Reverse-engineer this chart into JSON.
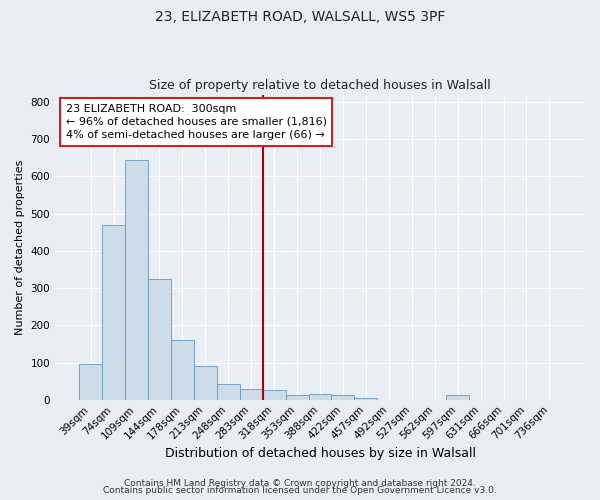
{
  "title1": "23, ELIZABETH ROAD, WALSALL, WS5 3PF",
  "title2": "Size of property relative to detached houses in Walsall",
  "xlabel": "Distribution of detached houses by size in Walsall",
  "ylabel": "Number of detached properties",
  "bar_labels": [
    "39sqm",
    "74sqm",
    "109sqm",
    "144sqm",
    "178sqm",
    "213sqm",
    "248sqm",
    "283sqm",
    "318sqm",
    "353sqm",
    "388sqm",
    "422sqm",
    "457sqm",
    "492sqm",
    "527sqm",
    "562sqm",
    "597sqm",
    "631sqm",
    "666sqm",
    "701sqm",
    "736sqm"
  ],
  "bar_values": [
    95,
    470,
    645,
    325,
    160,
    90,
    43,
    30,
    25,
    14,
    15,
    12,
    5,
    0,
    0,
    0,
    12,
    0,
    0,
    0,
    0
  ],
  "bar_color": "#ccdce8",
  "bar_edge_color": "#6699bb",
  "vline_color": "#aa0000",
  "annotation_title": "23 ELIZABETH ROAD:  300sqm",
  "annotation_line1": "← 96% of detached houses are smaller (1,816)",
  "annotation_line2": "4% of semi-detached houses are larger (66) →",
  "annotation_box_facecolor": "#ffffff",
  "annotation_box_edgecolor": "#cc2222",
  "ylim": [
    0,
    820
  ],
  "yticks": [
    0,
    100,
    200,
    300,
    400,
    500,
    600,
    700,
    800
  ],
  "footer1": "Contains HM Land Registry data © Crown copyright and database right 2024.",
  "footer2": "Contains public sector information licensed under the Open Government Licence v3.0.",
  "bg_color": "#e8eef4",
  "plot_bg_color": "#e8eef4",
  "grid_color": "#ffffff",
  "title1_fontsize": 10,
  "title2_fontsize": 9,
  "xlabel_fontsize": 9,
  "ylabel_fontsize": 8,
  "tick_fontsize": 7.5,
  "annotation_fontsize": 8,
  "footer_fontsize": 6.5
}
